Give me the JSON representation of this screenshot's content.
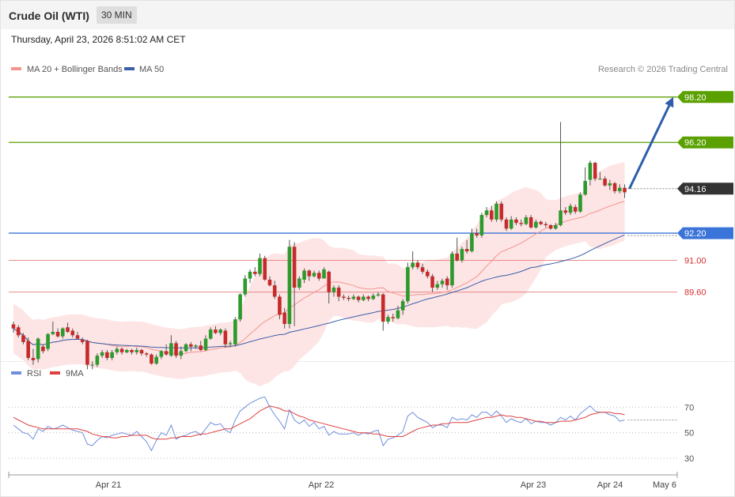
{
  "header": {
    "title": "Crude Oil (WTI)",
    "timeframe": "30 MIN"
  },
  "datetime": "Thursday, April 23, 2026 8:51:02 AM CET",
  "legend": {
    "ma20": "MA 20 + Bollinger Bands",
    "ma50": "MA 50",
    "rsi": "RSI",
    "ma9": "9MA",
    "credit": "Research © 2026 Trading Central"
  },
  "colors": {
    "up": "#2c9a2c",
    "down": "#c62b2b",
    "ma20": "#f4948f",
    "band": "#fde0e0",
    "ma50": "#3b5ea8",
    "resistance": "#5aa000",
    "pivot": "#3b74d8",
    "support": "#e06868",
    "current": "#333333",
    "arrow": "#2e5eaa",
    "rsi": "#6f8fdc",
    "rsi_ma": "#e04040"
  },
  "chart_data": {
    "type": "candlestick",
    "title": "Crude Oil (WTI)",
    "interval": "30 MIN",
    "ylim": [
      86.7,
      98.75
    ],
    "x_ticks": [
      "Apr 21",
      "Apr 22",
      "Apr 23",
      "Apr 24",
      "May 6"
    ],
    "levels": [
      {
        "value": 98.2,
        "label": "98.20",
        "kind": "resistance"
      },
      {
        "value": 96.2,
        "label": "96.20",
        "kind": "resistance"
      },
      {
        "value": 94.16,
        "label": "94.16",
        "kind": "current"
      },
      {
        "value": 92.2,
        "label": "92.20",
        "kind": "pivot"
      },
      {
        "value": 91.0,
        "label": "91.00",
        "kind": "support"
      },
      {
        "value": 89.6,
        "label": "89.60",
        "kind": "support"
      }
    ],
    "arrow": {
      "from": 94.16,
      "to": 98.2
    },
    "candles": [
      [
        88.18,
        88.0,
        88.3,
        87.82
      ],
      [
        88.05,
        87.7,
        88.15,
        87.6
      ],
      [
        87.7,
        87.4,
        87.8,
        87.3
      ],
      [
        87.45,
        86.7,
        87.6,
        86.6
      ],
      [
        86.7,
        86.6,
        87.1,
        86.4
      ],
      [
        86.65,
        87.55,
        87.6,
        86.5
      ],
      [
        87.2,
        87.0,
        87.3,
        86.9
      ],
      [
        87.1,
        87.75,
        87.8,
        87.0
      ],
      [
        87.75,
        87.85,
        88.3,
        87.7
      ],
      [
        87.85,
        87.65,
        88.0,
        87.6
      ],
      [
        87.65,
        88.0,
        88.05,
        87.55
      ],
      [
        88.05,
        87.85,
        88.25,
        87.8
      ],
      [
        87.9,
        87.7,
        88.0,
        87.6
      ],
      [
        87.7,
        87.55,
        87.85,
        87.5
      ],
      [
        87.5,
        87.4,
        87.6,
        87.3
      ],
      [
        87.45,
        86.4,
        87.5,
        86.2
      ],
      [
        86.4,
        86.4,
        86.55,
        86.2
      ],
      [
        86.4,
        86.8,
        86.9,
        86.3
      ],
      [
        86.8,
        86.95,
        87.05,
        86.7
      ],
      [
        86.95,
        86.7,
        87.05,
        86.6
      ],
      [
        86.7,
        86.95,
        87.05,
        86.6
      ],
      [
        86.95,
        87.1,
        87.2,
        86.85
      ],
      [
        87.1,
        86.95,
        87.15,
        86.85
      ],
      [
        86.95,
        87.05,
        87.1,
        86.9
      ],
      [
        87.05,
        86.95,
        87.1,
        86.85
      ],
      [
        86.95,
        87.05,
        87.15,
        86.85
      ],
      [
        87.05,
        86.9,
        87.1,
        86.8
      ],
      [
        86.9,
        86.85,
        86.95,
        86.75
      ],
      [
        86.85,
        86.45,
        86.9,
        86.4
      ],
      [
        86.45,
        86.75,
        86.85,
        86.4
      ],
      [
        86.75,
        87.0,
        87.05,
        86.65
      ],
      [
        87.0,
        86.85,
        87.3,
        86.8
      ],
      [
        86.8,
        87.35,
        87.7,
        86.75
      ],
      [
        87.35,
        86.8,
        87.45,
        86.7
      ],
      [
        86.8,
        87.0,
        87.2,
        86.65
      ],
      [
        87.0,
        87.3,
        87.35,
        86.95
      ],
      [
        87.3,
        87.2,
        87.4,
        87.0
      ],
      [
        87.2,
        87.25,
        87.3,
        87.1
      ],
      [
        87.25,
        87.05,
        87.45,
        87.0
      ],
      [
        87.05,
        87.55,
        87.7,
        87.0
      ],
      [
        87.55,
        87.95,
        88.05,
        87.5
      ],
      [
        87.95,
        87.8,
        88.1,
        87.75
      ],
      [
        87.8,
        87.95,
        88.0,
        87.7
      ],
      [
        87.9,
        87.3,
        88.0,
        87.15
      ],
      [
        87.3,
        87.35,
        87.45,
        87.2
      ],
      [
        87.3,
        88.4,
        88.5,
        87.2
      ],
      [
        88.4,
        89.5,
        89.55,
        88.3
      ],
      [
        89.5,
        90.2,
        90.35,
        89.4
      ],
      [
        90.2,
        90.5,
        90.6,
        90.0
      ],
      [
        90.5,
        90.4,
        90.7,
        90.3
      ],
      [
        90.4,
        91.1,
        91.3,
        90.3
      ],
      [
        91.1,
        90.15,
        91.2,
        90.1
      ],
      [
        90.15,
        89.9,
        90.3,
        89.85
      ],
      [
        89.9,
        89.4,
        90.1,
        89.3
      ],
      [
        89.4,
        88.6,
        89.5,
        88.4
      ],
      [
        88.7,
        88.2,
        88.9,
        88.0
      ],
      [
        88.2,
        91.6,
        91.9,
        88.0
      ],
      [
        91.6,
        89.8,
        91.8,
        88.1
      ],
      [
        89.8,
        90.2,
        90.3,
        89.7
      ],
      [
        90.15,
        90.55,
        90.65,
        90.0
      ],
      [
        90.55,
        90.3,
        90.6,
        90.1
      ],
      [
        90.3,
        90.45,
        90.55,
        90.25
      ],
      [
        90.45,
        90.2,
        90.55,
        90.1
      ],
      [
        90.2,
        90.6,
        90.7,
        90.2
      ],
      [
        90.5,
        89.6,
        90.55,
        89.1
      ],
      [
        89.6,
        89.8,
        89.9,
        89.4
      ],
      [
        89.8,
        89.4,
        89.9,
        89.2
      ],
      [
        89.4,
        89.35,
        89.5,
        89.25
      ],
      [
        89.35,
        89.3,
        89.45,
        89.2
      ],
      [
        89.3,
        89.4,
        89.5,
        89.25
      ],
      [
        89.4,
        89.25,
        89.45,
        89.15
      ],
      [
        89.25,
        89.4,
        89.5,
        89.2
      ],
      [
        89.4,
        89.3,
        89.45,
        89.2
      ],
      [
        89.3,
        89.45,
        89.55,
        89.25
      ],
      [
        89.45,
        89.5,
        89.6,
        89.4
      ],
      [
        89.5,
        88.3,
        89.55,
        87.9
      ],
      [
        88.3,
        88.5,
        88.6,
        88.2
      ],
      [
        88.5,
        88.45,
        88.65,
        88.3
      ],
      [
        88.45,
        88.8,
        89.0,
        88.4
      ],
      [
        88.8,
        89.2,
        89.3,
        88.6
      ],
      [
        89.2,
        90.7,
        90.9,
        89.1
      ],
      [
        90.7,
        90.9,
        91.4,
        90.6
      ],
      [
        90.9,
        90.7,
        91.0,
        90.6
      ],
      [
        90.7,
        90.5,
        90.85,
        90.4
      ],
      [
        90.5,
        90.3,
        90.6,
        90.2
      ],
      [
        90.3,
        89.8,
        90.4,
        89.6
      ],
      [
        89.8,
        89.95,
        90.1,
        89.7
      ],
      [
        89.95,
        90.1,
        90.2,
        89.8
      ],
      [
        90.2,
        89.9,
        90.3,
        89.7
      ],
      [
        89.9,
        91.3,
        91.4,
        89.8
      ],
      [
        91.3,
        91.0,
        92.0,
        90.95
      ],
      [
        91.0,
        91.5,
        91.6,
        90.9
      ],
      [
        91.5,
        91.4,
        91.9,
        91.3
      ],
      [
        91.4,
        92.2,
        92.4,
        91.35
      ],
      [
        92.2,
        92.1,
        92.4,
        92.0
      ],
      [
        92.1,
        93.0,
        93.1,
        92.0
      ],
      [
        93.0,
        93.2,
        93.35,
        92.9
      ],
      [
        93.2,
        92.8,
        93.4,
        92.7
      ],
      [
        92.8,
        93.5,
        93.6,
        92.7
      ],
      [
        93.5,
        92.8,
        93.6,
        92.7
      ],
      [
        92.8,
        92.4,
        92.9,
        92.3
      ],
      [
        92.4,
        92.8,
        92.95,
        92.35
      ],
      [
        92.8,
        92.65,
        92.9,
        92.55
      ],
      [
        92.65,
        92.6,
        92.8,
        92.5
      ],
      [
        92.6,
        92.9,
        93.0,
        92.55
      ],
      [
        92.9,
        92.45,
        93.0,
        92.4
      ],
      [
        92.45,
        92.7,
        92.8,
        92.4
      ],
      [
        92.7,
        92.6,
        92.75,
        92.55
      ],
      [
        92.6,
        92.55,
        92.7,
        92.45
      ],
      [
        92.55,
        92.4,
        92.6,
        92.35
      ],
      [
        92.4,
        92.55,
        92.65,
        92.35
      ],
      [
        92.55,
        93.2,
        97.1,
        92.5
      ],
      [
        93.2,
        93.1,
        93.35,
        93.0
      ],
      [
        93.1,
        93.4,
        93.5,
        93.0
      ],
      [
        93.35,
        93.15,
        93.45,
        93.05
      ],
      [
        93.15,
        93.9,
        94.0,
        93.1
      ],
      [
        93.9,
        94.5,
        95.1,
        93.85
      ],
      [
        94.55,
        95.3,
        95.4,
        94.3
      ],
      [
        95.3,
        94.6,
        95.35,
        94.5
      ],
      [
        94.6,
        94.6,
        94.9,
        94.55
      ],
      [
        94.6,
        94.3,
        94.7,
        94.25
      ],
      [
        94.3,
        94.4,
        94.55,
        94.1
      ],
      [
        94.4,
        94.05,
        94.45,
        93.95
      ],
      [
        94.05,
        94.2,
        94.35,
        93.95
      ],
      [
        94.2,
        94.0,
        94.35,
        93.75
      ]
    ],
    "rsi": {
      "ylim": [
        22,
        85
      ],
      "ticks": [
        70,
        50,
        30
      ],
      "rsi": [
        56,
        53,
        50,
        49,
        45,
        53,
        51,
        55,
        53,
        54,
        56,
        54,
        52,
        51,
        50,
        41,
        40,
        44,
        47,
        46,
        48,
        49,
        50,
        49,
        48,
        51,
        47,
        43,
        36,
        44,
        50,
        48,
        56,
        45,
        47,
        48,
        50,
        51,
        48,
        53,
        58,
        56,
        57,
        52,
        50,
        60,
        67,
        70,
        73,
        75,
        77,
        78,
        70,
        64,
        59,
        53,
        68,
        60,
        57,
        60,
        55,
        58,
        53,
        55,
        48,
        51,
        49,
        49,
        49,
        50,
        48,
        50,
        49,
        51,
        52,
        40,
        45,
        46,
        48,
        51,
        63,
        66,
        62,
        60,
        58,
        54,
        56,
        56,
        54,
        62,
        60,
        61,
        60,
        64,
        62,
        66,
        66,
        63,
        67,
        63,
        58,
        61,
        59,
        58,
        61,
        57,
        59,
        58,
        58,
        56,
        58,
        62,
        60,
        63,
        60,
        65,
        68,
        71,
        67,
        66,
        66,
        64,
        63,
        59,
        60
      ],
      "ma9": [
        62,
        60,
        58,
        56,
        55,
        54,
        53,
        53,
        53,
        53,
        53,
        53,
        53,
        53,
        52,
        51,
        49,
        48,
        47,
        47,
        46,
        46,
        47,
        47,
        48,
        48,
        48,
        48,
        46,
        45,
        45,
        45,
        46,
        46,
        47,
        47,
        47,
        48,
        49,
        49,
        50,
        51,
        52,
        53,
        53,
        55,
        57,
        59,
        61,
        64,
        67,
        69,
        71,
        70,
        69,
        67,
        67,
        65,
        63,
        62,
        60,
        59,
        58,
        57,
        56,
        55,
        54,
        53,
        52,
        51,
        50,
        50,
        50,
        49,
        49,
        48,
        47,
        47,
        47,
        47,
        49,
        51,
        53,
        54,
        55,
        56,
        56,
        57,
        57,
        58,
        58,
        58,
        58,
        59,
        60,
        61,
        62,
        62,
        63,
        64,
        63,
        63,
        62,
        62,
        61,
        60,
        59,
        59,
        58,
        58,
        58,
        59,
        59,
        59,
        60,
        61,
        62,
        64,
        65,
        66,
        66,
        66,
        65,
        65,
        64
      ]
    }
  }
}
